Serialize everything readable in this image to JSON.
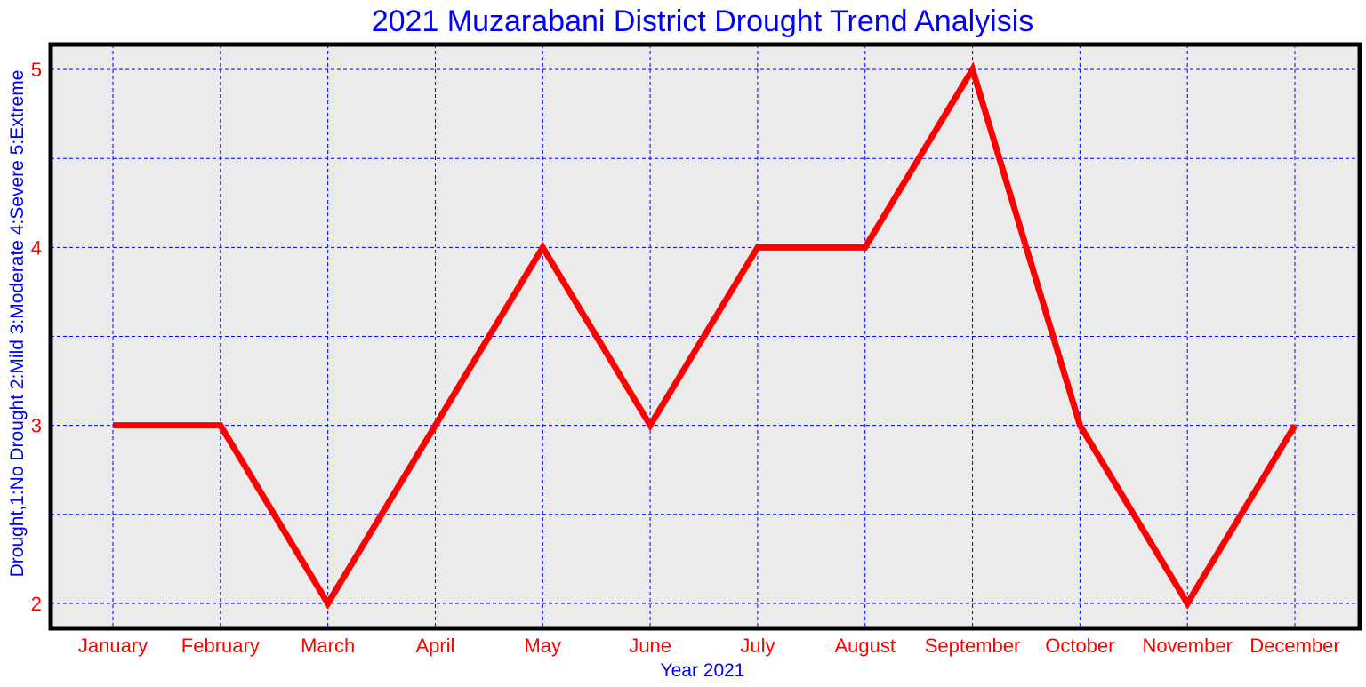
{
  "chart_data": {
    "type": "line",
    "title": "2021 Muzarabani District Drought Trend Analyisis",
    "xlabel": "Year 2021",
    "ylabel": "Drought,1:No Drought 2:Mild 3:Moderate 4:Severe 5:Extreme",
    "categories": [
      "January",
      "February",
      "March",
      "April",
      "May",
      "June",
      "July",
      "August",
      "September",
      "October",
      "November",
      "December"
    ],
    "series": [
      {
        "values": [
          3,
          3,
          2,
          3,
          4,
          3,
          4,
          4,
          5,
          3,
          2,
          3
        ]
      }
    ],
    "ylim": [
      1.86,
      5.14
    ],
    "yticks": [
      2,
      3,
      4,
      5
    ],
    "ygrid": [
      2,
      2.5,
      3,
      3.5,
      4,
      4.5,
      5
    ],
    "grid": true,
    "colors": {
      "line": "#ff0000",
      "grid": "#0000ff",
      "plot_background": "#ebebeb",
      "frame": "#000000",
      "title": "#0000ff",
      "tick_labels": "#ff0000",
      "axis_labels": "#0000ff"
    }
  }
}
